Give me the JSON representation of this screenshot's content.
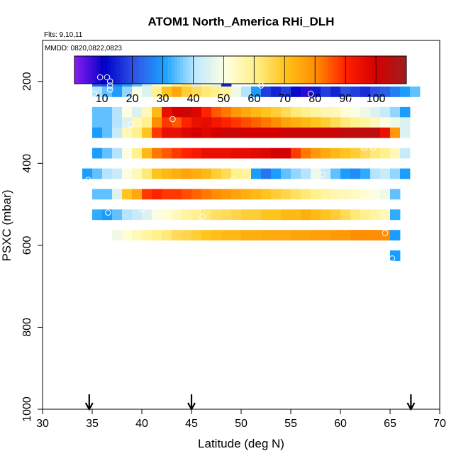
{
  "chart_data": {
    "type": "heatmap",
    "title": "ATOM1 North_America RHi_DLH",
    "flights_label": "Flts: 9,10,11",
    "dates_label": "MMDD: 0820,0822,0823",
    "xlabel": "Latitude (deg N)",
    "ylabel": "PSXC (mbar)",
    "xlim": [
      30,
      70
    ],
    "ylim": [
      1000,
      100
    ],
    "x_ticks": [
      "30",
      "35",
      "40",
      "45",
      "50",
      "55",
      "60",
      "65",
      "70"
    ],
    "y_ticks": [
      "200",
      "400",
      "600",
      "800",
      "1000"
    ],
    "colorbar": {
      "range": [
        1,
        110
      ],
      "ticks": [
        "10",
        "20",
        "30",
        "40",
        "50",
        "60",
        "70",
        "80",
        "90",
        "100"
      ],
      "colors": [
        "#8b1cf0",
        "#0000c8",
        "#2f55e6",
        "#1aa2ff",
        "#bfe8ff",
        "#ffffe0",
        "#fff08a",
        "#ffc21a",
        "#ff8c00",
        "#ff2000",
        "#d40000",
        "#9e1f1f"
      ]
    },
    "cell_size": {
      "lat": 1,
      "pressure_mbar": 25
    },
    "rows": [
      {
        "p": 200,
        "lat0": 35,
        "values": [
          22,
          20,
          25,
          30,
          35,
          42,
          48,
          50,
          58,
          62,
          45,
          55,
          45,
          15
        ]
      },
      {
        "p": 225,
        "lat0": 35,
        "values": [
          40,
          35,
          30,
          38,
          50,
          45,
          60,
          70,
          75,
          68,
          65,
          62,
          60,
          58,
          48,
          40,
          30,
          18,
          15,
          18,
          12,
          8,
          14,
          18,
          15,
          20,
          18,
          16,
          20,
          22,
          26,
          30,
          35
        ]
      },
      {
        "p": 275,
        "lat0": 35,
        "values": [
          35,
          35,
          40,
          50,
          45,
          55,
          72,
          95,
          100,
          102,
          98,
          90,
          85,
          82,
          78,
          75,
          72,
          70,
          68,
          65,
          62,
          60,
          58,
          56,
          55,
          52,
          50,
          48,
          45,
          42,
          38,
          30
        ]
      },
      {
        "p": 300,
        "lat0": 35,
        "values": [
          35,
          35,
          40,
          45,
          55,
          60,
          80,
          88,
          85,
          90,
          95,
          96,
          93,
          90,
          88,
          86,
          84,
          82,
          80,
          76,
          74,
          72,
          70,
          68,
          65,
          62,
          60,
          58,
          55,
          50,
          48,
          45
        ]
      },
      {
        "p": 325,
        "lat0": 35,
        "values": [
          30,
          35,
          42,
          55,
          60,
          70,
          88,
          95,
          95,
          98,
          100,
          98,
          100,
          102,
          102,
          100,
          100,
          100,
          100,
          102,
          102,
          102,
          102,
          102,
          102,
          104,
          104,
          104,
          104,
          95,
          78,
          45
        ]
      },
      {
        "p": 375,
        "lat0": 35,
        "values": [
          30,
          35,
          40,
          50,
          60,
          72,
          82,
          85,
          88,
          90,
          92,
          95,
          95,
          95,
          96,
          96,
          97,
          98,
          100,
          100,
          88,
          82,
          78,
          75,
          72,
          70,
          68,
          65,
          62,
          60,
          55,
          42
        ]
      },
      {
        "p": 425,
        "lat0": 34,
        "values": [
          30,
          35,
          40,
          42,
          50,
          55,
          62,
          70,
          72,
          74,
          76,
          74,
          72,
          68,
          65,
          60,
          58,
          30,
          25,
          30,
          35,
          38,
          40,
          48,
          42,
          35,
          30,
          28,
          32,
          40,
          42,
          38,
          30
        ]
      },
      {
        "p": 475,
        "lat0": 35,
        "values": [
          35,
          35,
          45,
          70,
          75,
          88,
          90,
          88,
          88,
          86,
          84,
          82,
          80,
          78,
          76,
          74,
          72,
          70,
          68,
          66,
          64,
          62,
          60,
          58,
          56,
          55,
          54,
          52,
          50,
          48,
          35
        ]
      },
      {
        "p": 525,
        "lat0": 35,
        "values": [
          32,
          30,
          35,
          40,
          42,
          45,
          50,
          52,
          55,
          58,
          60,
          62,
          64,
          65,
          66,
          68,
          68,
          70,
          70,
          72,
          72,
          74,
          72,
          70,
          68,
          65,
          62,
          60,
          58,
          55,
          32
        ]
      },
      {
        "p": 575,
        "lat0": 37,
        "values": [
          48,
          52,
          55,
          58,
          60,
          62,
          65,
          66,
          68,
          70,
          71,
          72,
          72,
          74,
          74,
          75,
          75,
          75,
          76,
          76,
          77,
          77,
          78,
          78,
          80,
          80,
          80,
          80,
          30
        ]
      },
      {
        "p": 625,
        "lat0": 65,
        "values": [
          30
        ]
      }
    ],
    "markers": [
      {
        "lat": 35.8,
        "p": 190
      },
      {
        "lat": 36.5,
        "p": 190
      },
      {
        "lat": 36.8,
        "p": 200
      },
      {
        "lat": 36.8,
        "p": 210
      },
      {
        "lat": 36.8,
        "p": 220
      },
      {
        "lat": 35.2,
        "p": 230
      },
      {
        "lat": 52.0,
        "p": 210
      },
      {
        "lat": 57.0,
        "p": 230
      },
      {
        "lat": 61.0,
        "p": 245
      },
      {
        "lat": 70.0,
        "p": 228
      },
      {
        "lat": 43.1,
        "p": 292
      },
      {
        "lat": 38.9,
        "p": 305
      },
      {
        "lat": 62.4,
        "p": 362
      },
      {
        "lat": 63.3,
        "p": 362
      },
      {
        "lat": 34.6,
        "p": 440
      },
      {
        "lat": 49.2,
        "p": 440
      },
      {
        "lat": 53.3,
        "p": 455
      },
      {
        "lat": 58.2,
        "p": 428
      },
      {
        "lat": 55.2,
        "p": 497
      },
      {
        "lat": 36.6,
        "p": 520
      },
      {
        "lat": 40.0,
        "p": 512
      },
      {
        "lat": 46.1,
        "p": 530
      },
      {
        "lat": 50.8,
        "p": 548
      },
      {
        "lat": 59.8,
        "p": 545
      },
      {
        "lat": 64.5,
        "p": 570
      },
      {
        "lat": 37.9,
        "p": 607
      },
      {
        "lat": 41.4,
        "p": 600
      },
      {
        "lat": 65.2,
        "p": 632
      }
    ],
    "arrows": [
      {
        "lat": 34.7
      },
      {
        "lat": 45.0
      },
      {
        "lat": 67.1
      }
    ]
  }
}
